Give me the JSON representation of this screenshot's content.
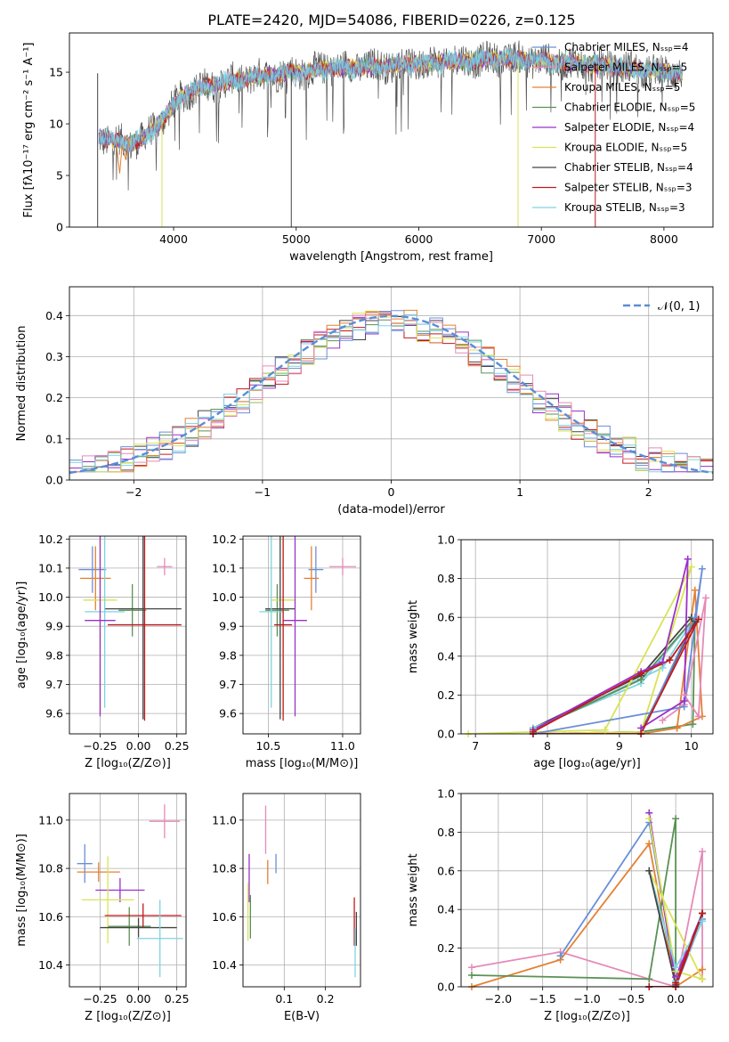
{
  "title": "PLATE=2420, MJD=54086, FIBERID=0226, z=0.125",
  "colors": [
    "#6a8fd8",
    "#e58033",
    "#5a9155",
    "#9b30c8",
    "#d9e356",
    "#444444",
    "#c0191d",
    "#7fd3e0",
    "#e58ab8"
  ],
  "chart_data": [
    {
      "id": "spectrum",
      "type": "line",
      "xlabel": "wavelength [Angstrom, rest frame]",
      "ylabel": "Flux [fλ10⁻¹⁷ erg cm⁻² s⁻¹ A⁻¹]",
      "xlim": [
        3150,
        8400
      ],
      "ylim": [
        0,
        18.8
      ],
      "xticks": [
        4000,
        5000,
        6000,
        7000,
        8000
      ],
      "yticks": [
        0,
        5,
        10,
        15
      ],
      "grid": false,
      "legend_position": "right",
      "legend": [
        {
          "label": "Chabrier MILES, Nₛₛₚ=4",
          "color": "#6a8fd8"
        },
        {
          "label": "Salpeter MILES, Nₛₛₚ=5",
          "color": "#e58ab8"
        },
        {
          "label": "Kroupa MILES, Nₛₛₚ=5",
          "color": "#e58033"
        },
        {
          "label": "Chabrier ELODIE, Nₛₛₚ=5",
          "color": "#5a9155"
        },
        {
          "label": "Salpeter ELODIE, Nₛₛₚ=4",
          "color": "#9b30c8"
        },
        {
          "label": "Kroupa ELODIE, Nₛₛₚ=5",
          "color": "#d9e356"
        },
        {
          "label": "Chabrier STELIB, Nₛₛₚ=4",
          "color": "#444444"
        },
        {
          "label": "Salpeter STELIB, Nₛₛₚ=3",
          "color": "#c0191d"
        },
        {
          "label": "Kroupa STELIB, Nₛₛₚ=3",
          "color": "#7fd3e0"
        }
      ],
      "envelope": {
        "x": [
          3390,
          3450,
          3550,
          3650,
          3750,
          3850,
          3950,
          4050,
          4150,
          4250,
          4350,
          4500,
          4700,
          4900,
          5100,
          5300,
          5500,
          5700,
          5900,
          6100,
          6300,
          6500,
          6700,
          6900,
          7100,
          7300,
          7500,
          7700,
          7900,
          8150
        ],
        "y": [
          8.8,
          8.5,
          8.3,
          8.1,
          8.5,
          9.7,
          11.0,
          12.5,
          13.3,
          13.6,
          13.8,
          14.2,
          14.6,
          14.9,
          15.1,
          15.4,
          15.5,
          15.6,
          15.8,
          15.9,
          16.1,
          16.2,
          16.3,
          16.2,
          16.0,
          15.8,
          15.6,
          15.4,
          15.2,
          14.9
        ]
      },
      "gaps": [
        3380,
        3905,
        4960,
        6810,
        7440
      ]
    },
    {
      "id": "residuals",
      "type": "line",
      "xlabel": "(data-model)/error",
      "ylabel": "Normed distribution",
      "xlim": [
        -2.5,
        2.5
      ],
      "ylim": [
        0,
        0.47
      ],
      "xticks": [
        -2,
        -1,
        0,
        1,
        2
      ],
      "yticks": [
        0.0,
        0.1,
        0.2,
        0.3,
        0.4
      ],
      "grid": true,
      "legend_position": "top-right",
      "legend": [
        {
          "label": "𝒩(0, 1)",
          "color": "#5b8dd6"
        }
      ],
      "gaussian": {
        "mu": 0,
        "sigma": 1
      }
    },
    {
      "id": "age-vs-Z",
      "type": "scatter",
      "xlabel": "Z [log₁₀(Z/Z⊙)]",
      "ylabel": "age  [log₁₀(age/yr)]",
      "xlim": [
        -0.45,
        0.31
      ],
      "ylim": [
        9.53,
        10.21
      ],
      "xticks": [
        -0.25,
        0.0,
        0.25
      ],
      "xticklabels": [
        "−0.25",
        "0.00",
        "0.25"
      ],
      "yticks": [
        9.6,
        9.7,
        9.8,
        9.9,
        10.0,
        10.1,
        10.2
      ],
      "grid": true,
      "points": [
        {
          "c": 0,
          "x": -0.3,
          "y": 10.095,
          "xerr": 0.09,
          "yerr": 0.08
        },
        {
          "c": 1,
          "x": -0.28,
          "y": 10.065,
          "xerr": 0.1,
          "yerr": 0.11
        },
        {
          "c": 8,
          "x": 0.17,
          "y": 10.105,
          "xerr": 0.05,
          "yerr": 0.03
        },
        {
          "c": 2,
          "x": -0.04,
          "y": 9.955,
          "xerr": 0.09,
          "yerr": 0.09
        },
        {
          "c": 4,
          "x": -0.25,
          "y": 9.99,
          "xerr": 0.11,
          "yerr": 0.39
        },
        {
          "c": 5,
          "x": 0.03,
          "y": 9.96,
          "xerr": 0.25,
          "yerr": 0.38
        },
        {
          "c": 7,
          "x": -0.22,
          "y": 9.95,
          "xerr": 0.13,
          "yerr": 0.33
        },
        {
          "c": 3,
          "x": -0.25,
          "y": 9.92,
          "xerr": 0.1,
          "yerr": 0.33
        },
        {
          "c": 6,
          "x": 0.04,
          "y": 9.905,
          "xerr": 0.24,
          "yerr": 0.33
        }
      ]
    },
    {
      "id": "age-vs-mass",
      "type": "scatter",
      "xlabel": "mass [log₁₀(M/M⊙)]",
      "ylabel": "",
      "xlim": [
        10.33,
        11.12
      ],
      "ylim": [
        9.53,
        10.21
      ],
      "xticks": [
        10.5,
        11.0
      ],
      "yticks": [
        9.6,
        9.7,
        9.8,
        9.9,
        10.0,
        10.1,
        10.2
      ],
      "grid": true,
      "points": [
        {
          "c": 0,
          "x": 10.82,
          "y": 10.095,
          "xerr": 0.05,
          "yerr": 0.08
        },
        {
          "c": 1,
          "x": 10.79,
          "y": 10.065,
          "xerr": 0.05,
          "yerr": 0.11
        },
        {
          "c": 8,
          "x": 11.0,
          "y": 10.105,
          "xerr": 0.09,
          "yerr": 0.03
        },
        {
          "c": 2,
          "x": 10.56,
          "y": 9.955,
          "xerr": 0.08,
          "yerr": 0.09
        },
        {
          "c": 4,
          "x": 10.6,
          "y": 9.99,
          "xerr": 0.08,
          "yerr": 0.39
        },
        {
          "c": 5,
          "x": 10.58,
          "y": 9.96,
          "xerr": 0.1,
          "yerr": 0.38
        },
        {
          "c": 7,
          "x": 10.52,
          "y": 9.95,
          "xerr": 0.08,
          "yerr": 0.33
        },
        {
          "c": 3,
          "x": 10.68,
          "y": 9.92,
          "xerr": 0.08,
          "yerr": 0.33
        },
        {
          "c": 6,
          "x": 10.6,
          "y": 9.905,
          "xerr": 0.06,
          "yerr": 0.33
        }
      ]
    },
    {
      "id": "mass-weight-vs-age",
      "type": "line",
      "xlabel": "age  [log₁₀(age/yr)]",
      "ylabel": "mass weight",
      "xlim": [
        6.8,
        10.3
      ],
      "ylim": [
        0,
        1
      ],
      "xticks": [
        7,
        8,
        9,
        10
      ],
      "yticks": [
        0.0,
        0.2,
        0.4,
        0.6,
        0.8,
        1.0
      ],
      "grid": true,
      "series": [
        {
          "c": 5,
          "x": [
            7.8,
            9.3,
            10.0,
            10.05,
            9.3,
            7.8
          ],
          "y": [
            0.03,
            0.3,
            0.6,
            0.58,
            0.01,
            0.0
          ]
        },
        {
          "c": 7,
          "x": [
            7.8,
            9.3,
            10.05,
            9.6,
            7.8
          ],
          "y": [
            0.03,
            0.26,
            0.6,
            0.34,
            0.02
          ]
        },
        {
          "c": 2,
          "x": [
            7.8,
            9.3,
            10.05,
            10.02,
            9.3,
            7.8
          ],
          "y": [
            0.02,
            0.28,
            0.6,
            0.05,
            0.01,
            0.0
          ]
        },
        {
          "c": 4,
          "x": [
            6.9,
            8.8,
            10.0,
            9.3,
            7.8
          ],
          "y": [
            0.0,
            0.02,
            0.86,
            0.01,
            0.0
          ]
        },
        {
          "c": 1,
          "x": [
            9.3,
            9.8,
            10.05,
            10.15,
            9.8
          ],
          "y": [
            0.0,
            0.03,
            0.74,
            0.09,
            0.03
          ]
        },
        {
          "c": 8,
          "x": [
            9.6,
            9.9,
            10.2,
            10.1,
            9.9
          ],
          "y": [
            0.07,
            0.15,
            0.7,
            0.09,
            0.2
          ]
        },
        {
          "c": 0,
          "x": [
            7.8,
            9.9,
            10.15,
            10.05,
            9.3,
            7.8
          ],
          "y": [
            0.0,
            0.14,
            0.85,
            0.6,
            0.0,
            0.0
          ]
        },
        {
          "c": 3,
          "x": [
            7.8,
            9.3,
            9.6,
            9.95,
            9.9,
            9.3
          ],
          "y": [
            0.02,
            0.32,
            0.37,
            0.9,
            0.17,
            0.03
          ]
        },
        {
          "c": 6,
          "x": [
            7.8,
            9.3,
            9.7,
            10.1,
            9.3,
            7.8
          ],
          "y": [
            0.01,
            0.31,
            0.38,
            0.59,
            0.0,
            0.0
          ]
        }
      ]
    },
    {
      "id": "mass-vs-Z",
      "type": "scatter",
      "xlabel": "Z [log₁₀(Z/Z⊙)]",
      "ylabel": "mass [log₁₀(M/M⊙)]",
      "xlim": [
        -0.45,
        0.31
      ],
      "ylim": [
        10.31,
        11.11
      ],
      "xticks": [
        -0.25,
        0.0,
        0.25
      ],
      "xticklabels": [
        "−0.25",
        "0.00",
        "0.25"
      ],
      "yticks": [
        10.4,
        10.6,
        10.8,
        11.0
      ],
      "grid": true,
      "points": [
        {
          "c": 0,
          "x": -0.35,
          "y": 10.82,
          "xerr": 0.05,
          "yerr": 0.08
        },
        {
          "c": 1,
          "x": -0.26,
          "y": 10.785,
          "xerr": 0.14,
          "yerr": 0.04
        },
        {
          "c": 8,
          "x": 0.17,
          "y": 10.995,
          "xerr": 0.1,
          "yerr": 0.07
        },
        {
          "c": 2,
          "x": -0.06,
          "y": 10.56,
          "xerr": 0.14,
          "yerr": 0.08
        },
        {
          "c": 3,
          "x": -0.12,
          "y": 10.71,
          "xerr": 0.16,
          "yerr": 0.05
        },
        {
          "c": 4,
          "x": -0.2,
          "y": 10.67,
          "xerr": 0.17,
          "yerr": 0.18
        },
        {
          "c": 6,
          "x": 0.03,
          "y": 10.605,
          "xerr": 0.25,
          "yerr": 0.05
        },
        {
          "c": 5,
          "x": 0.0,
          "y": 10.555,
          "xerr": 0.25,
          "yerr": 0.04
        },
        {
          "c": 7,
          "x": 0.14,
          "y": 10.51,
          "xerr": 0.15,
          "yerr": 0.16
        }
      ]
    },
    {
      "id": "mass-vs-EBV",
      "type": "scatter",
      "xlabel": "E(B-V)",
      "ylabel": "",
      "xlim": [
        0.0,
        0.285
      ],
      "ylim": [
        10.31,
        11.11
      ],
      "xticks": [
        0.1,
        0.2
      ],
      "yticks": [
        10.4,
        10.6,
        10.8,
        11.0
      ],
      "grid": true,
      "points": [
        {
          "c": 0,
          "x": 0.08,
          "y": 10.82,
          "xerr": 0,
          "yerr": 0.04
        },
        {
          "c": 1,
          "x": 0.06,
          "y": 10.785,
          "xerr": 0,
          "yerr": 0.05
        },
        {
          "c": 8,
          "x": 0.055,
          "y": 10.96,
          "xerr": 0,
          "yerr": 0.1
        },
        {
          "c": 3,
          "x": 0.015,
          "y": 10.76,
          "xerr": 0,
          "yerr": 0.1
        },
        {
          "c": 4,
          "x": 0.012,
          "y": 10.62,
          "xerr": 0,
          "yerr": 0.12
        },
        {
          "c": 2,
          "x": 0.018,
          "y": 10.6,
          "xerr": 0,
          "yerr": 0.09
        },
        {
          "c": 6,
          "x": 0.27,
          "y": 10.58,
          "xerr": 0,
          "yerr": 0.1
        },
        {
          "c": 5,
          "x": 0.275,
          "y": 10.55,
          "xerr": 0,
          "yerr": 0.07
        },
        {
          "c": 7,
          "x": 0.272,
          "y": 10.45,
          "xerr": 0,
          "yerr": 0.1
        }
      ]
    },
    {
      "id": "mass-weight-vs-Z",
      "type": "line",
      "xlabel": "Z [log₁₀(Z/Z⊙)]",
      "ylabel": "mass weight",
      "xlim": [
        -2.42,
        0.42
      ],
      "ylim": [
        0,
        1
      ],
      "xticks": [
        -2.0,
        -1.5,
        -1.0,
        -0.5,
        0.0
      ],
      "xticklabels": [
        "−2.0",
        "−1.5",
        "−1.0",
        "−0.5",
        "0.0"
      ],
      "yticks": [
        0.0,
        0.2,
        0.4,
        0.6,
        0.8,
        1.0
      ],
      "grid": true,
      "series": [
        {
          "c": 8,
          "x": [
            -2.3,
            -1.3,
            -0.3,
            0.0,
            0.3,
            0.3
          ],
          "y": [
            0.1,
            0.18,
            0.04,
            0.0,
            0.7,
            0.04
          ]
        },
        {
          "c": 1,
          "x": [
            -2.3,
            -1.3,
            -0.3,
            0.0,
            0.3
          ],
          "y": [
            0.0,
            0.14,
            0.74,
            0.0,
            0.09
          ]
        },
        {
          "c": 0,
          "x": [
            -1.3,
            -0.3,
            0.0,
            0.3,
            0.0,
            -0.3
          ],
          "y": [
            0.16,
            0.85,
            0.05,
            0.35,
            0.0,
            0.0
          ]
        },
        {
          "c": 2,
          "x": [
            -2.3,
            -0.3,
            0.0,
            0.0,
            0.3
          ],
          "y": [
            0.06,
            0.04,
            0.87,
            0.02,
            0.38
          ]
        },
        {
          "c": 3,
          "x": [
            -0.3,
            0.0,
            0.3,
            0.0
          ],
          "y": [
            0.9,
            0.02,
            0.38,
            0.05
          ]
        },
        {
          "c": 4,
          "x": [
            -0.3,
            0.0,
            0.3,
            -0.3
          ],
          "y": [
            0.87,
            0.08,
            0.04,
            0.6
          ]
        },
        {
          "c": 7,
          "x": [
            -0.3,
            0.0,
            0.3,
            0.0
          ],
          "y": [
            0.6,
            0.1,
            0.34,
            0.03
          ]
        },
        {
          "c": 5,
          "x": [
            -0.3,
            0.0,
            0.3,
            0.0,
            -0.3
          ],
          "y": [
            0.6,
            0.01,
            0.38,
            0.0,
            0.0
          ]
        },
        {
          "c": 6,
          "x": [
            -0.3,
            0.0,
            0.3,
            0.0
          ],
          "y": [
            0.0,
            0.0,
            0.38,
            0.02
          ]
        }
      ]
    }
  ]
}
